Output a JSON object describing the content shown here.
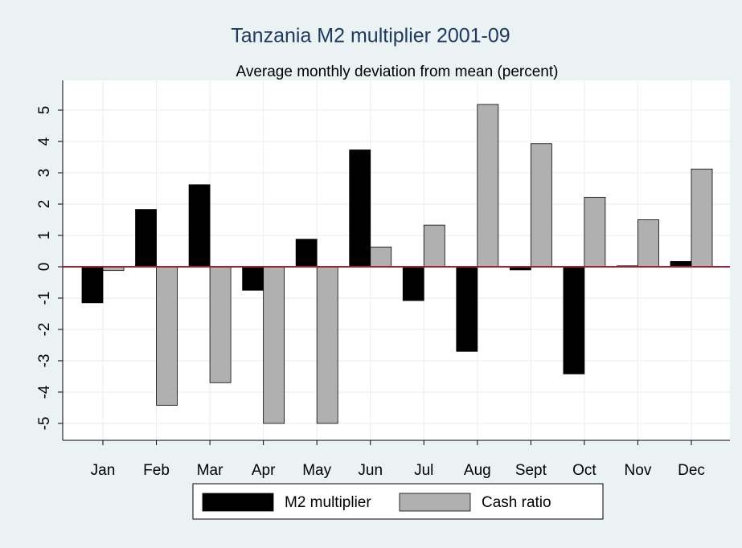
{
  "chart_data": {
    "type": "bar",
    "title": "Tanzania M2 multiplier 2001-09",
    "subtitle": "Average monthly deviation from mean (percent)",
    "categories": [
      "Jan",
      "Feb",
      "Mar",
      "Apr",
      "May",
      "Jun",
      "Jul",
      "Aug",
      "Sept",
      "Oct",
      "Nov",
      "Dec"
    ],
    "series": [
      {
        "name": "M2 multiplier",
        "color": "#000000",
        "values": [
          -1.15,
          1.83,
          2.62,
          -0.75,
          0.88,
          3.73,
          -1.08,
          -2.7,
          -0.1,
          -3.42,
          0.03,
          0.17
        ]
      },
      {
        "name": "Cash ratio",
        "color": "#b0b0b0",
        "values": [
          -0.12,
          -4.42,
          -3.7,
          -5.0,
          -5.0,
          0.63,
          1.33,
          5.18,
          3.93,
          2.22,
          1.5,
          3.12
        ]
      }
    ],
    "ylim": [
      -5.54,
      5.95
    ],
    "yticks": [
      -5,
      -4,
      -3,
      -2,
      -1,
      0,
      1,
      2,
      3,
      4,
      5
    ],
    "grid": true,
    "zero_line_color": "#a0203c"
  }
}
